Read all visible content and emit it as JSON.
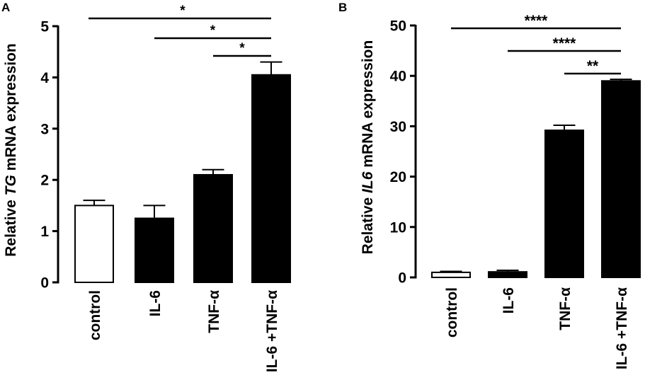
{
  "chart_data": [
    {
      "panel": "A",
      "type": "bar",
      "categories": [
        "control",
        "IL-6",
        "TNF-α",
        "IL-6 +TNF-α"
      ],
      "values": [
        1.5,
        1.25,
        2.1,
        4.05
      ],
      "errors": [
        0.1,
        0.25,
        0.1,
        0.25
      ],
      "bar_colors": [
        "#ffffff",
        "#000000",
        "#000000",
        "#000000"
      ],
      "ylabel_pre": "Relative ",
      "ylabel_gene": "TG",
      "ylabel_post": " mRNA expression",
      "ylim": [
        0,
        5
      ],
      "yticks": [
        "0",
        "1",
        "2",
        "3",
        "4",
        "5"
      ],
      "significance": [
        {
          "from": 0,
          "to": 3,
          "label": "*"
        },
        {
          "from": 1,
          "to": 3,
          "label": "*"
        },
        {
          "from": 2,
          "to": 3,
          "label": "*"
        }
      ]
    },
    {
      "panel": "B",
      "type": "bar",
      "categories": [
        "control",
        "IL-6",
        "TNF-α",
        "IL-6 +TNF-α"
      ],
      "values": [
        1.0,
        1.1,
        29.2,
        39.0
      ],
      "errors": [
        0.2,
        0.3,
        1.0,
        0.3
      ],
      "bar_colors": [
        "#ffffff",
        "#000000",
        "#000000",
        "#000000"
      ],
      "ylabel_pre": "Relative ",
      "ylabel_gene": "IL6",
      "ylabel_post": " mRNA expression",
      "ylim": [
        0,
        50
      ],
      "yticks": [
        "0",
        "10",
        "20",
        "30",
        "40",
        "50"
      ],
      "significance": [
        {
          "from": 0,
          "to": 3,
          "label": "****"
        },
        {
          "from": 1,
          "to": 3,
          "label": "****"
        },
        {
          "from": 2,
          "to": 3,
          "label": "**"
        }
      ]
    }
  ]
}
